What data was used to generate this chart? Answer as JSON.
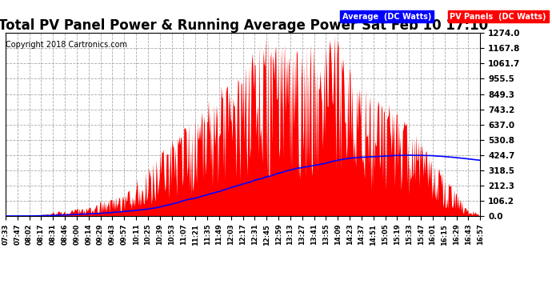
{
  "title": "Total PV Panel Power & Running Average Power Sat Feb 10 17:10",
  "copyright": "Copyright 2018 Cartronics.com",
  "legend_avg": "Average  (DC Watts)",
  "legend_pv": "PV Panels  (DC Watts)",
  "yticks": [
    0.0,
    106.2,
    212.3,
    318.5,
    424.7,
    530.8,
    637.0,
    743.2,
    849.3,
    955.5,
    1061.7,
    1167.8,
    1274.0
  ],
  "ytick_labels": [
    "0.0",
    "106.2",
    "212.3",
    "318.5",
    "424.7",
    "530.8",
    "637.0",
    "743.2",
    "849.3",
    "955.5",
    "1061.7",
    "1167.8",
    "1274.0"
  ],
  "ymax": 1274.0,
  "ymin": 0.0,
  "bg_color": "#ffffff",
  "plot_bg_color": "#ffffff",
  "grid_color": "#aaaaaa",
  "pv_color": "#ff0000",
  "avg_color": "#0000ff",
  "title_fontsize": 12,
  "xtick_labels": [
    "07:33",
    "07:47",
    "08:02",
    "08:17",
    "08:31",
    "08:46",
    "09:00",
    "09:14",
    "09:29",
    "09:43",
    "09:57",
    "10:11",
    "10:25",
    "10:39",
    "10:53",
    "11:07",
    "11:21",
    "11:35",
    "11:49",
    "12:03",
    "12:17",
    "12:31",
    "12:45",
    "12:59",
    "13:13",
    "13:27",
    "13:41",
    "13:55",
    "14:09",
    "14:23",
    "14:37",
    "14:51",
    "15:05",
    "15:19",
    "15:33",
    "15:47",
    "16:01",
    "16:15",
    "16:29",
    "16:43",
    "16:57"
  ]
}
